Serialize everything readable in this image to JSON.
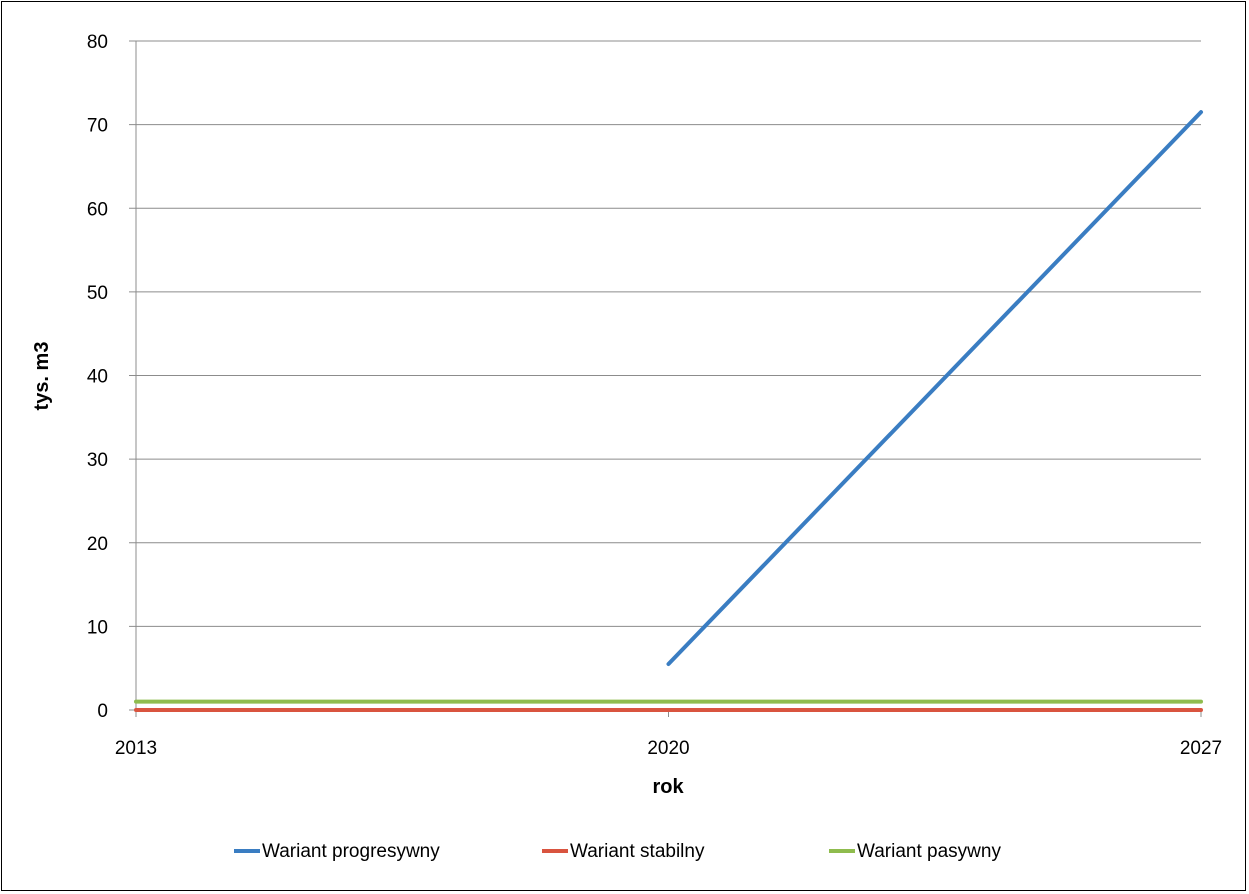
{
  "chart_data": {
    "type": "line",
    "title": "",
    "xlabel": "rok",
    "ylabel": "tys. m3",
    "xlim": [
      2013,
      2027
    ],
    "ylim": [
      0,
      80
    ],
    "x_ticks": [
      "2013",
      "2020",
      "2027"
    ],
    "y_ticks": [
      "0",
      "10",
      "20",
      "30",
      "40",
      "50",
      "60",
      "70",
      "80"
    ],
    "grid": true,
    "legend_position": "bottom",
    "series": [
      {
        "name": "Wariant progresywny",
        "color": "#3a7dc2",
        "x": [
          2020,
          2027
        ],
        "values": [
          5.5,
          71.5
        ]
      },
      {
        "name": "Wariant stabilny",
        "color": "#d9543f",
        "x": [
          2013,
          2027
        ],
        "values": [
          0,
          0
        ]
      },
      {
        "name": "Wariant pasywny",
        "color": "#8fbc4e",
        "x": [
          2013,
          2027
        ],
        "values": [
          1,
          1
        ]
      }
    ]
  }
}
